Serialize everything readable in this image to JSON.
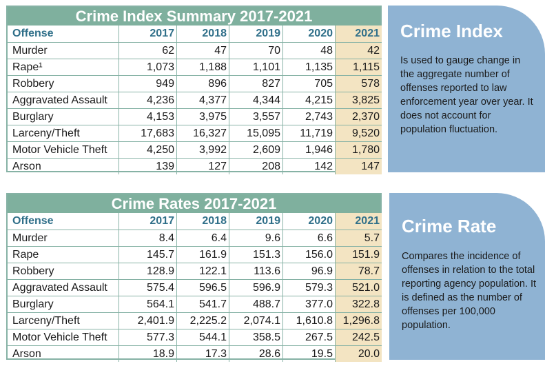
{
  "colors": {
    "table_header_bg": "#7fb09e",
    "table_border": "#86b2a5",
    "header_text": "#2f6f89",
    "highlight_2021": "#f3e4c2",
    "panel_bg": "#8fb3d3"
  },
  "table1": {
    "title": "Crime Index Summary 2017-2021",
    "headers": [
      "Offense",
      "2017",
      "2018",
      "2019",
      "2020",
      "2021"
    ],
    "rows": [
      [
        "Murder",
        "62",
        "47",
        "70",
        "48",
        "42"
      ],
      [
        "Rape¹",
        "1,073",
        "1,188",
        "1,101",
        "1,135",
        "1,115"
      ],
      [
        "Robbery",
        "949",
        "896",
        "827",
        "705",
        "578"
      ],
      [
        "Aggravated Assault",
        "4,236",
        "4,377",
        "4,344",
        "4,215",
        "3,825"
      ],
      [
        "Burglary",
        "4,153",
        "3,975",
        "3,557",
        "2,743",
        "2,370"
      ],
      [
        "Larceny/Theft",
        "17,683",
        "16,327",
        "15,095",
        "11,719",
        "9,520"
      ],
      [
        "Motor Vehicle Theft",
        "4,250",
        "3,992",
        "2,609",
        "1,946",
        "1,780"
      ],
      [
        "Arson",
        "139",
        "127",
        "208",
        "142",
        "147"
      ]
    ]
  },
  "table2": {
    "title": "Crime Rates 2017-2021",
    "headers": [
      "Offense",
      "2017",
      "2018",
      "2019",
      "2020",
      "2021"
    ],
    "rows": [
      [
        "Murder",
        "8.4",
        "6.4",
        "9.6",
        "6.6",
        "5.7"
      ],
      [
        "Rape",
        "145.7",
        "161.9",
        "151.3",
        "156.0",
        "151.9"
      ],
      [
        "Robbery",
        "128.9",
        "122.1",
        "113.6",
        "96.9",
        "78.7"
      ],
      [
        "Aggravated Assault",
        "575.4",
        "596.5",
        "596.9",
        "579.3",
        "521.0"
      ],
      [
        "Burglary",
        "564.1",
        "541.7",
        "488.7",
        "377.0",
        "322.8"
      ],
      [
        "Larceny/Theft",
        "2,401.9",
        "2,225.2",
        "2,074.1",
        "1,610.8",
        "1,296.8"
      ],
      [
        "Motor Vehicle Theft",
        "577.3",
        "544.1",
        "358.5",
        "267.5",
        "242.5"
      ],
      [
        "Arson",
        "18.9",
        "17.3",
        "28.6",
        "19.5",
        "20.0"
      ]
    ]
  },
  "panel1": {
    "title": "Crime Index",
    "text": "Is used to gauge change in the aggregate number of offenses reported to law enforcement year over year. It does not account for population fluctuation."
  },
  "panel2": {
    "title": "Crime Rate",
    "text": "Compares the incidence of offenses in relation to the total reporting agency population. It is defined as the number of offenses per 100,000 population."
  }
}
